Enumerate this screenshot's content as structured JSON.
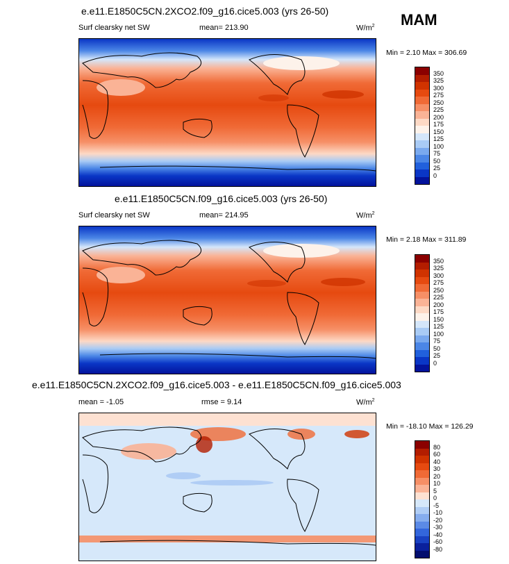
{
  "season_label": "MAM",
  "unit": {
    "base": "W/m",
    "exp": "2"
  },
  "panels": [
    {
      "title": "e.e11.E1850C5CN.2XCO2.f09_g16.cice5.003 (yrs 26-50)",
      "left_label": "Surf clearsky net SW",
      "mid_label": "mean= 213.90",
      "minmax": "Min =   2.10 Max = 306.69",
      "palette": "seq"
    },
    {
      "title": "e.e11.E1850C5CN.f09_g16.cice5.003 (yrs 26-50)",
      "left_label": "Surf clearsky net SW",
      "mid_label": "mean= 214.95",
      "minmax": "Min =   2.18 Max = 311.89",
      "palette": "seq"
    },
    {
      "title": "e.e11.E1850C5CN.2XCO2.f09_g16.cice5.003 - e.e11.E1850C5CN.f09_g16.cice5.003",
      "left_label": "mean =  -1.05",
      "mid_label": "rmse =  9.14",
      "minmax": "Min = -18.10 Max = 126.29",
      "palette": "div"
    }
  ],
  "colorbars": {
    "seq": {
      "levels": [
        "350",
        "325",
        "300",
        "275",
        "250",
        "225",
        "200",
        "175",
        "150",
        "125",
        "100",
        "75",
        "50",
        "25",
        "0"
      ],
      "colors": [
        "#8b0000",
        "#b31d00",
        "#d03300",
        "#e64a10",
        "#f06a36",
        "#f68f66",
        "#fab396",
        "#fdd9c5",
        "#fdf2ea",
        "#d4e6fa",
        "#a9cbf5",
        "#7aa9ee",
        "#4b86e6",
        "#2160dc",
        "#0a36c6",
        "#03139c"
      ]
    },
    "div": {
      "levels": [
        "80",
        "60",
        "40",
        "30",
        "20",
        "10",
        "5",
        "0",
        "-5",
        "-10",
        "-20",
        "-30",
        "-40",
        "-60",
        "-80"
      ],
      "colors": [
        "#8b0000",
        "#b31d00",
        "#d03300",
        "#e64a10",
        "#f06a36",
        "#f68f66",
        "#fab396",
        "#fde1d2",
        "#d6e8fa",
        "#b0cdf5",
        "#86adee",
        "#5b8ae6",
        "#3366dc",
        "#1941c2",
        "#0a209c",
        "#030e6e"
      ]
    }
  }
}
